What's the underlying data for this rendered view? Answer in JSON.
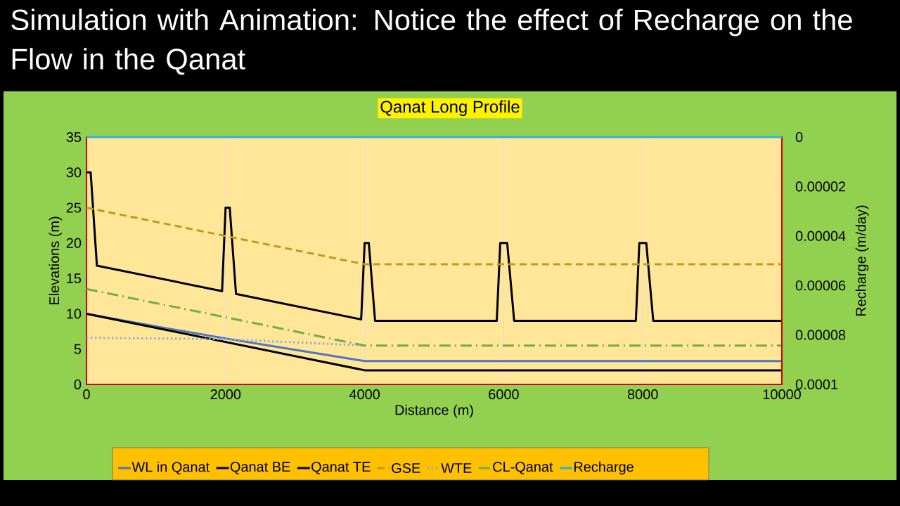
{
  "chart_data": {
    "type": "line",
    "title": "Simulation with Animation: Notice the effect of Recharge on the Flow in the Qanat",
    "subtitle": "Qanat Long Profile",
    "xlabel": "Distance (m)",
    "ylabel": "Elevations (m)",
    "y2label": "Recharge (m/day)",
    "xlim": [
      0,
      10000
    ],
    "xticks": [
      0,
      2000,
      4000,
      6000,
      8000,
      10000
    ],
    "ylim": [
      0,
      35
    ],
    "yticks": [
      0,
      5,
      10,
      15,
      20,
      25,
      30,
      35
    ],
    "y2lim": [
      0.0001,
      0
    ],
    "y2ticks": [
      {
        "value": 0,
        "label": "0"
      },
      {
        "value": 2e-05,
        "label": "0.00002"
      },
      {
        "value": 4e-05,
        "label": "0.00004"
      },
      {
        "value": 6e-05,
        "label": "0.00006"
      },
      {
        "value": 8e-05,
        "label": "0.00008"
      },
      {
        "value": 0.0001,
        "label": "0.0001"
      }
    ],
    "grid": "x",
    "legend": "bottom",
    "series": [
      {
        "name": "WL in Qanat",
        "color": "#4f74c0",
        "x": [
          0,
          1000,
          2000,
          3000,
          4000,
          10000
        ],
        "values": [
          10,
          8.2,
          6.5,
          4.9,
          3.3,
          3.3
        ]
      },
      {
        "name": "Qanat BE",
        "color": "#000000",
        "x": [
          0,
          2000,
          4000,
          10000
        ],
        "values": [
          10,
          6,
          2,
          2
        ]
      },
      {
        "name": "Qanat TE",
        "color": "#000000",
        "x": [
          0,
          60,
          150,
          1950,
          2000,
          2060,
          2150,
          3950,
          4000,
          4060,
          4150,
          5900,
          5950,
          6050,
          6150,
          7900,
          7950,
          8050,
          8150,
          10000
        ],
        "values": [
          30,
          30,
          16.8,
          13.2,
          25,
          25,
          12.8,
          9.2,
          20,
          20,
          9,
          9,
          20,
          20,
          9,
          9,
          20,
          20,
          9,
          9
        ]
      },
      {
        "name": "GSE",
        "color": "#c09a1c",
        "line_style": "dashed",
        "x": [
          0,
          2000,
          4000,
          10000
        ],
        "values": [
          25,
          21,
          17,
          17
        ]
      },
      {
        "name": "WTE",
        "color": "#8faadc",
        "line_style": "dotted",
        "x": [
          0,
          2000,
          4000
        ],
        "values": [
          6.6,
          6.4,
          5.5
        ]
      },
      {
        "name": "CL-Qanat",
        "color": "#70ad47",
        "line_style": "dashdot",
        "x": [
          0,
          2000,
          4000,
          10000
        ],
        "values": [
          13.5,
          9.5,
          5.5,
          5.5
        ]
      },
      {
        "name": "Recharge",
        "color": "#2eb4d6",
        "axis": "y2",
        "x": [
          0,
          10000
        ],
        "values": [
          0,
          0
        ]
      }
    ]
  }
}
